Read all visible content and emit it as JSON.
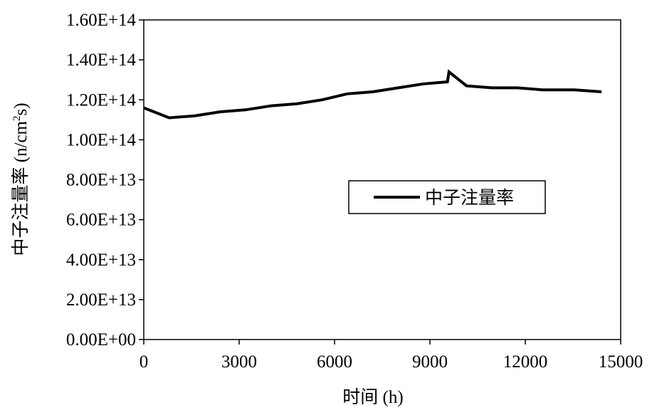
{
  "chart_data": {
    "type": "line",
    "xlabel": "时间 (h)",
    "ylabel_main": "中子注量率 (n/cm",
    "ylabel_sup": "2",
    "ylabel_tail": "s)",
    "xlim": [
      0,
      15000
    ],
    "ylim": [
      0,
      160000000000000.0
    ],
    "x_ticks": [
      "0",
      "3000",
      "6000",
      "9000",
      "12000",
      "15000"
    ],
    "x_tick_values": [
      0,
      3000,
      6000,
      9000,
      12000,
      15000
    ],
    "y_ticks": [
      "0.00E+00",
      "2.00E+13",
      "4.00E+13",
      "6.00E+13",
      "8.00E+13",
      "1.00E+14",
      "1.20E+14",
      "1.40E+14",
      "1.60E+14"
    ],
    "y_tick_values": [
      0,
      20000000000000.0,
      40000000000000.0,
      60000000000000.0,
      80000000000000.0,
      100000000000000.0,
      120000000000000.0,
      140000000000000.0,
      160000000000000.0
    ],
    "grid": false,
    "legend_position": "middle-right",
    "series": [
      {
        "name": "中子注量率",
        "color": "#000000",
        "x": [
          0,
          800,
          1600,
          2400,
          3200,
          4000,
          4800,
          5600,
          6400,
          7200,
          8000,
          8800,
          9550,
          9600,
          10150,
          10950,
          11750,
          12550,
          13550,
          14400
        ],
        "y": [
          116000000000000.0,
          111000000000000.0,
          112000000000000.0,
          114000000000000.0,
          115000000000000.0,
          117000000000000.0,
          118000000000000.0,
          120000000000000.0,
          123000000000000.0,
          124000000000000.0,
          126000000000000.0,
          128000000000000.0,
          129000000000000.0,
          134000000000000.0,
          127000000000000.0,
          126000000000000.0,
          126000000000000.0,
          125000000000000.0,
          125000000000000.0,
          124000000000000.0
        ]
      }
    ]
  }
}
